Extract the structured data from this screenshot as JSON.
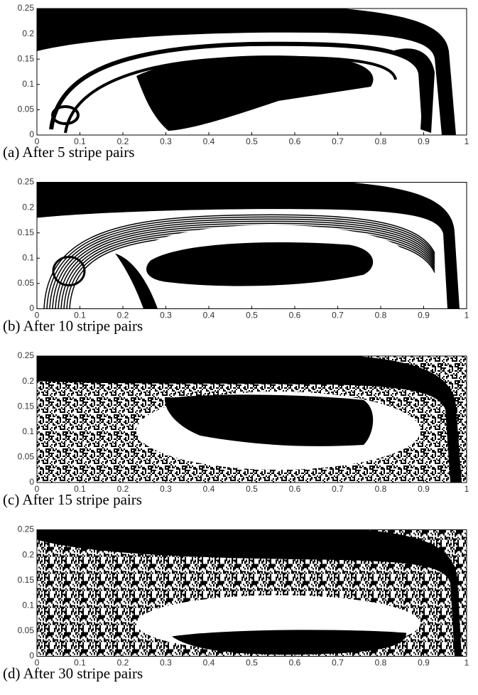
{
  "panels": [
    {
      "caption": "(a) After 5 stripe pairs",
      "xlim": [
        0,
        1
      ],
      "ylim": [
        0,
        0.25
      ],
      "xticks": [
        0,
        0.1,
        0.2,
        0.3,
        0.4,
        0.5,
        0.6,
        0.7,
        0.8,
        0.9,
        1
      ],
      "yticks": [
        0,
        0.05,
        0.1,
        0.15,
        0.2,
        0.25
      ]
    },
    {
      "caption": "(b) After 10 stripe pairs",
      "xlim": [
        0,
        1
      ],
      "ylim": [
        0,
        0.25
      ],
      "xticks": [
        0,
        0.1,
        0.2,
        0.3,
        0.4,
        0.5,
        0.6,
        0.7,
        0.8,
        0.9,
        1
      ],
      "yticks": [
        0,
        0.05,
        0.1,
        0.15,
        0.2,
        0.25
      ]
    },
    {
      "caption": "(c) After 15 stripe pairs",
      "xlim": [
        0,
        1
      ],
      "ylim": [
        0,
        0.25
      ],
      "xticks": [
        0,
        0.1,
        0.2,
        0.3,
        0.4,
        0.5,
        0.6,
        0.7,
        0.8,
        0.9,
        1
      ],
      "yticks": [
        0,
        0.05,
        0.1,
        0.15,
        0.2,
        0.25
      ]
    },
    {
      "caption": "(d) After 30 stripe pairs",
      "xlim": [
        0,
        1
      ],
      "ylim": [
        0,
        0.25
      ],
      "xticks": [
        0,
        0.1,
        0.2,
        0.3,
        0.4,
        0.5,
        0.6,
        0.7,
        0.8,
        0.9,
        1
      ],
      "yticks": [
        0,
        0.05,
        0.1,
        0.15,
        0.2,
        0.25
      ]
    }
  ]
}
